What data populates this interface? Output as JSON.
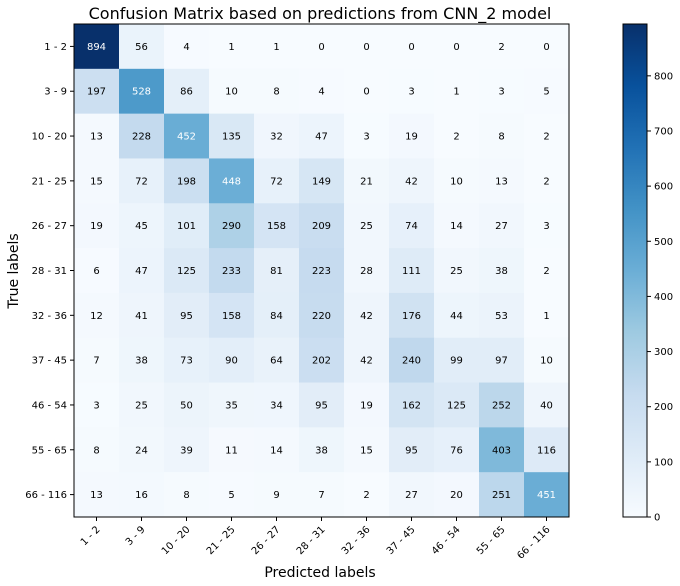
{
  "chart_data": {
    "type": "heatmap",
    "title": "Confusion Matrix based on predictions from CNN_2 model",
    "xlabel": "Predicted labels",
    "ylabel": "True labels",
    "x_categories": [
      "1 - 2",
      "3 - 9",
      "10 - 20",
      "21 - 25",
      "26 - 27",
      "28 - 31",
      "32 - 36",
      "37 - 45",
      "46 - 54",
      "55 - 65",
      "66 - 116"
    ],
    "y_categories": [
      "1 - 2",
      "3 - 9",
      "10 - 20",
      "21 - 25",
      "26 - 27",
      "28 - 31",
      "32 - 36",
      "37 - 45",
      "46 - 54",
      "55 - 65",
      "66 - 116"
    ],
    "matrix": [
      [
        894,
        56,
        4,
        1,
        1,
        0,
        0,
        0,
        0,
        2,
        0
      ],
      [
        197,
        528,
        86,
        10,
        8,
        4,
        0,
        3,
        1,
        3,
        5
      ],
      [
        13,
        228,
        452,
        135,
        32,
        47,
        3,
        19,
        2,
        8,
        2
      ],
      [
        15,
        72,
        198,
        448,
        72,
        149,
        21,
        42,
        10,
        13,
        2
      ],
      [
        19,
        45,
        101,
        290,
        158,
        209,
        25,
        74,
        14,
        27,
        3
      ],
      [
        6,
        47,
        125,
        233,
        81,
        223,
        28,
        111,
        25,
        38,
        2
      ],
      [
        12,
        41,
        95,
        158,
        84,
        220,
        42,
        176,
        44,
        53,
        1
      ],
      [
        7,
        38,
        73,
        90,
        64,
        202,
        42,
        240,
        99,
        97,
        10
      ],
      [
        3,
        25,
        50,
        35,
        34,
        95,
        19,
        162,
        125,
        252,
        40
      ],
      [
        8,
        24,
        39,
        11,
        14,
        38,
        15,
        95,
        76,
        403,
        116
      ],
      [
        13,
        16,
        8,
        5,
        9,
        7,
        2,
        27,
        20,
        251,
        451
      ]
    ],
    "colormap": "Blues",
    "color_min": 0,
    "color_max": 894,
    "colorbar_ticks": [
      0,
      100,
      200,
      300,
      400,
      500,
      600,
      700,
      800
    ],
    "grid": false,
    "legend": "colorbar-right"
  }
}
